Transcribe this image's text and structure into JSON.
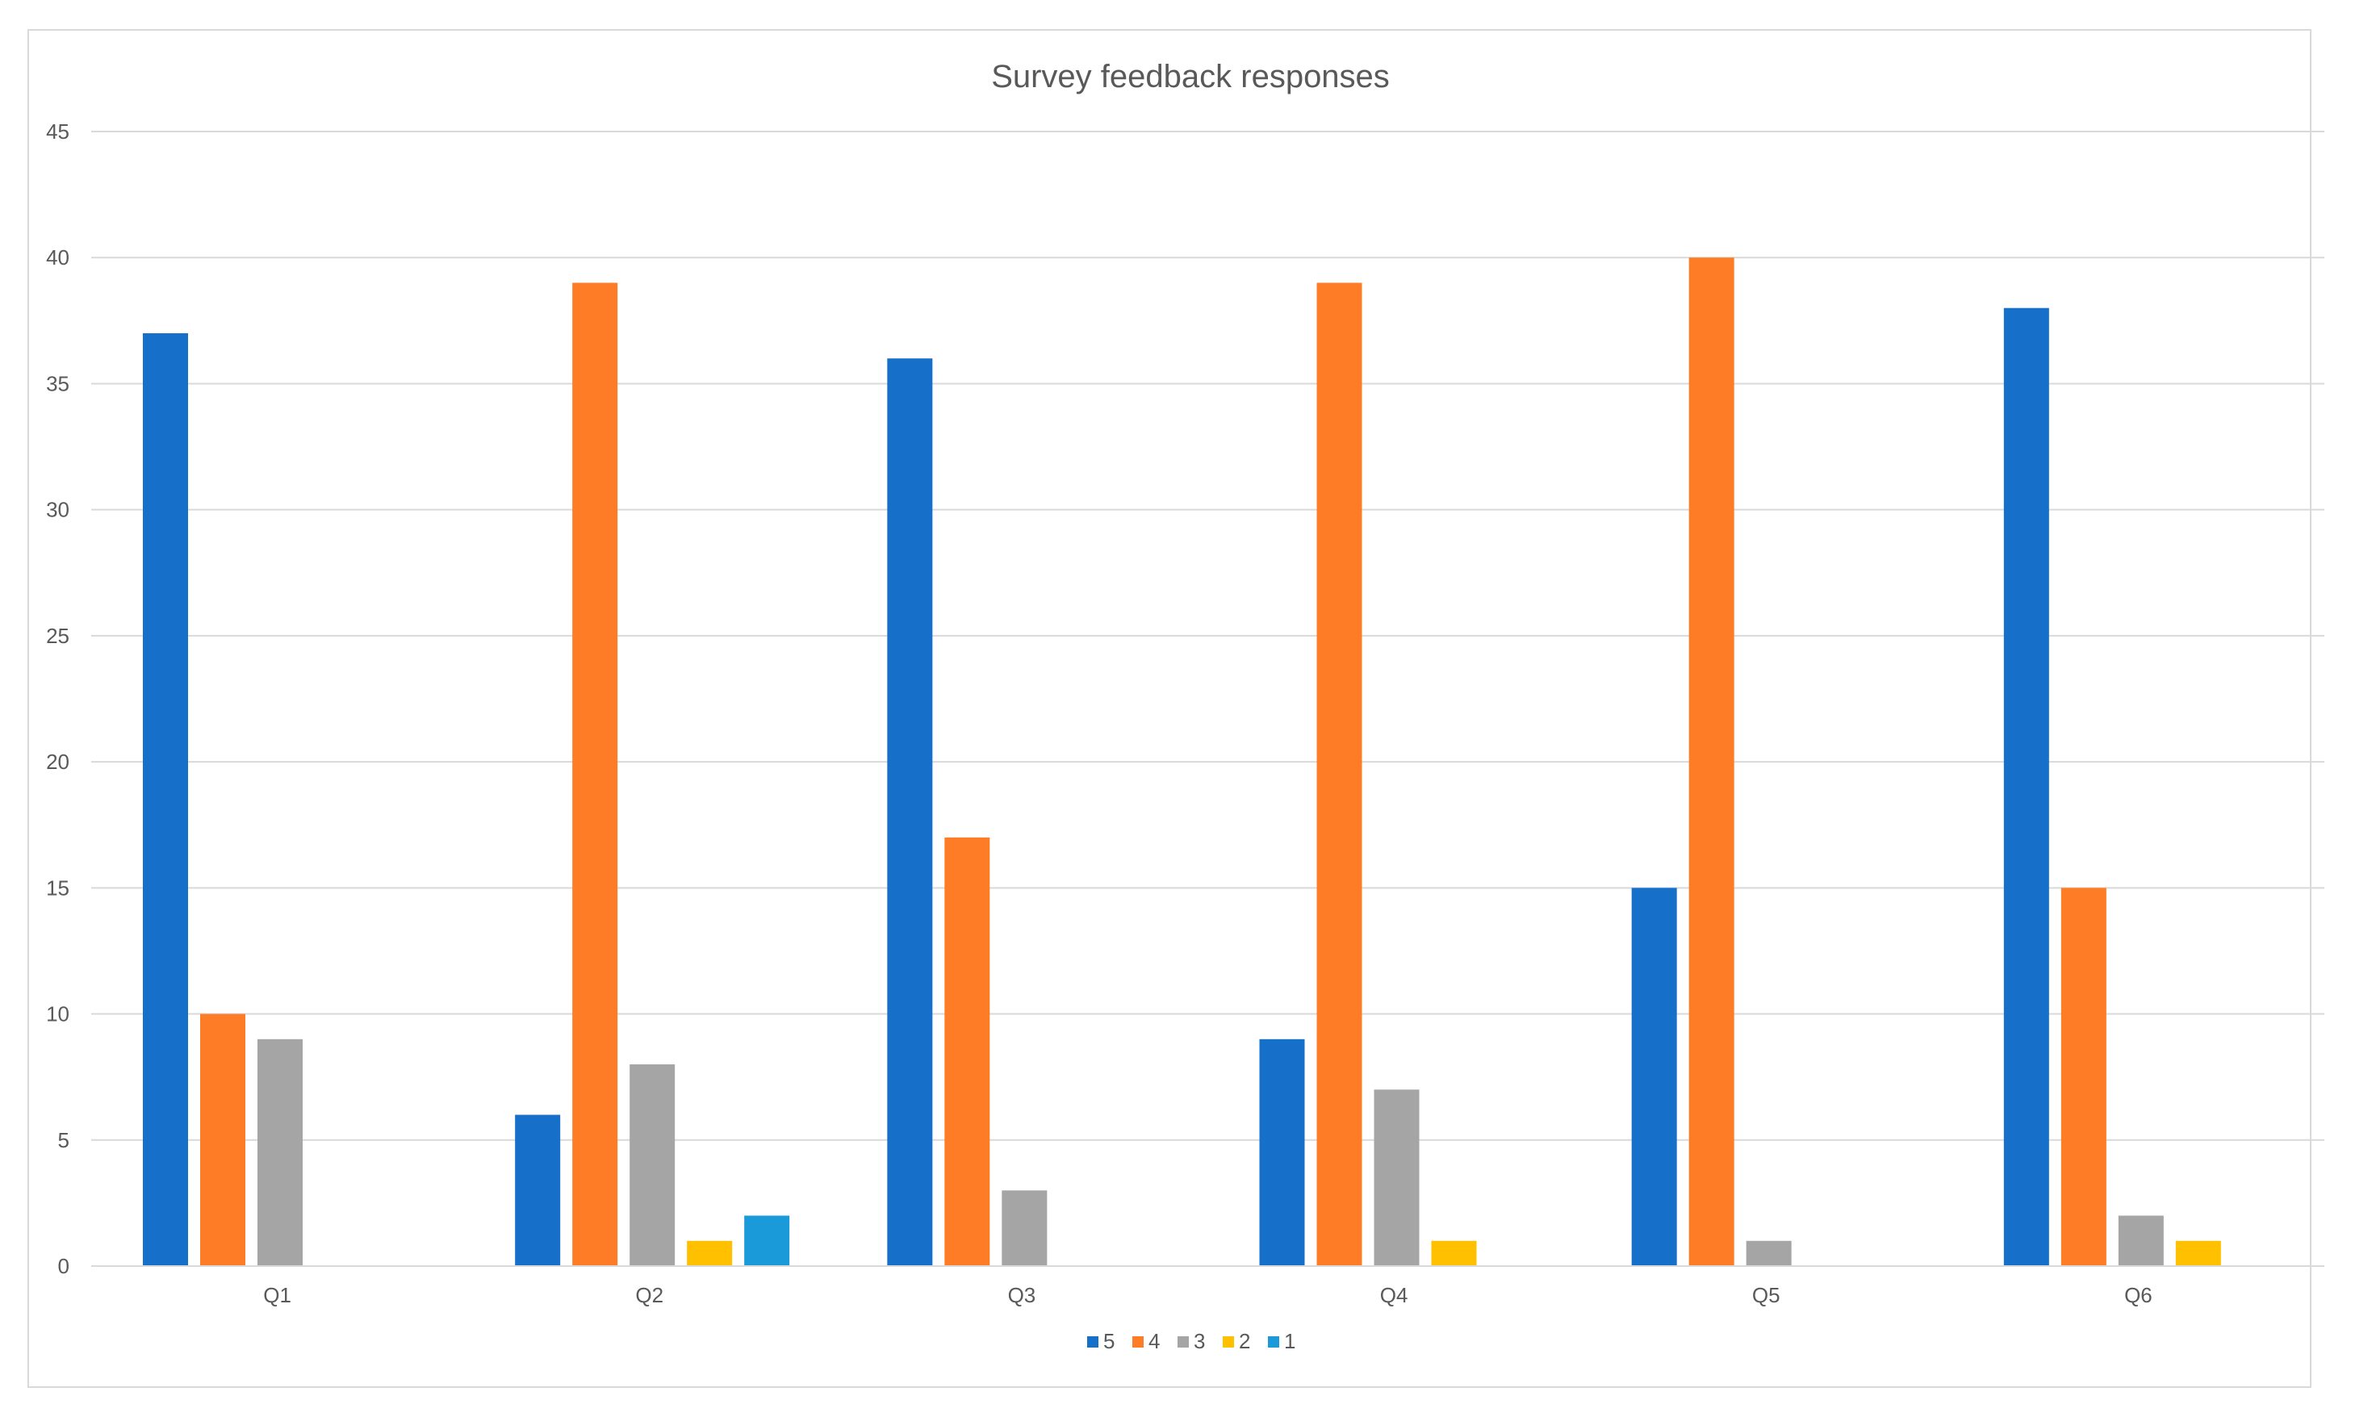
{
  "chart_data": {
    "type": "bar",
    "title": "Survey feedback responses",
    "xlabel": "",
    "ylabel": "",
    "categories": [
      "Q1",
      "Q2",
      "Q3",
      "Q4",
      "Q5",
      "Q6"
    ],
    "ylim": [
      0,
      45
    ],
    "yticks": [
      0,
      5,
      10,
      15,
      20,
      25,
      30,
      35,
      40,
      45
    ],
    "grid": true,
    "legend_position": "bottom",
    "series": [
      {
        "name": "5",
        "color": "#1670c9",
        "values": [
          37,
          6,
          36,
          9,
          15,
          38
        ]
      },
      {
        "name": "4",
        "color": "#fd7c25",
        "values": [
          10,
          39,
          17,
          39,
          40,
          15
        ]
      },
      {
        "name": "3",
        "color": "#a5a5a5",
        "values": [
          9,
          8,
          3,
          7,
          1,
          2
        ]
      },
      {
        "name": "2",
        "color": "#ffc000",
        "values": [
          0,
          1,
          0,
          1,
          0,
          1
        ]
      },
      {
        "name": "1",
        "color": "#1b9ad9",
        "values": [
          0,
          2,
          0,
          0,
          0,
          0
        ]
      }
    ]
  }
}
